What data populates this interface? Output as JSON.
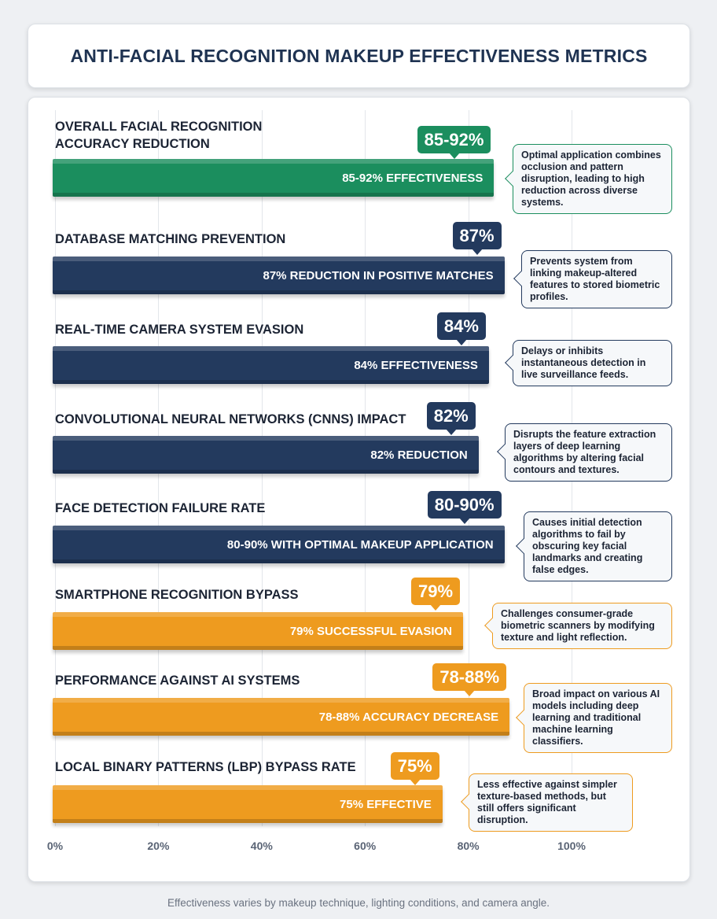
{
  "title": "ANTI-FACIAL RECOGNITION MAKEUP EFFECTIVENESS METRICS",
  "footnote": "Effectiveness varies by makeup technique, lighting conditions, and camera angle.",
  "colors": {
    "green": "#1b8e5e",
    "navy": "#233a5e",
    "orange": "#ee9b1f"
  },
  "chart_data": {
    "type": "bar",
    "orientation": "horizontal",
    "xlim": [
      0,
      100
    ],
    "grid": true,
    "ticks": [
      "0%",
      "20%",
      "40%",
      "60%",
      "80%",
      "100%"
    ],
    "items": [
      {
        "label": "OVERALL FACIAL RECOGNITION ACCURACY REDUCTION",
        "badge": "85-92%",
        "value": 85,
        "bar_text": "85-92% EFFECTIVENESS",
        "note": "Optimal application combines occlusion and pattern disruption, leading to high reduction across diverse systems.",
        "color": "green"
      },
      {
        "label": "DATABASE MATCHING PREVENTION",
        "badge": "87%",
        "value": 87,
        "bar_text": "87% REDUCTION IN POSITIVE MATCHES",
        "note": "Prevents system from linking makeup-altered features to stored biometric profiles.",
        "color": "navy"
      },
      {
        "label": "REAL-TIME CAMERA SYSTEM EVASION",
        "badge": "84%",
        "value": 84,
        "bar_text": "84% EFFECTIVENESS",
        "note": "Delays or inhibits instantaneous detection in live surveillance feeds.",
        "color": "navy"
      },
      {
        "label": "CONVOLUTIONAL NEURAL NETWORKS (CNNS) IMPACT",
        "badge": "82%",
        "value": 82,
        "bar_text": "82% REDUCTION",
        "note": "Disrupts the feature extraction layers of deep learning algorithms by altering facial contours and textures.",
        "color": "navy"
      },
      {
        "label": "FACE DETECTION FAILURE RATE",
        "badge": "80-90%",
        "value": 87,
        "bar_text": "80-90% WITH OPTIMAL MAKEUP APPLICATION",
        "note": "Causes initial detection algorithms to fail by obscuring key facial landmarks and creating false edges.",
        "color": "navy"
      },
      {
        "label": "SMARTPHONE RECOGNITION BYPASS",
        "badge": "79%",
        "value": 79,
        "bar_text": "79% SUCCESSFUL EVASION",
        "note": "Challenges consumer-grade biometric scanners by modifying texture and light reflection.",
        "color": "orange"
      },
      {
        "label": "PERFORMANCE AGAINST AI SYSTEMS",
        "badge": "78-88%",
        "value": 88,
        "bar_text": "78-88% ACCURACY DECREASE",
        "note": "Broad impact on various AI models including deep learning and traditional machine learning classifiers.",
        "color": "orange"
      },
      {
        "label": "LOCAL BINARY PATTERNS (LBP) BYPASS RATE",
        "badge": "75%",
        "value": 75,
        "bar_text": "75% EFFECTIVE",
        "note": "Less effective against simpler texture-based methods, but still offers significant disruption.",
        "color": "orange"
      }
    ]
  }
}
